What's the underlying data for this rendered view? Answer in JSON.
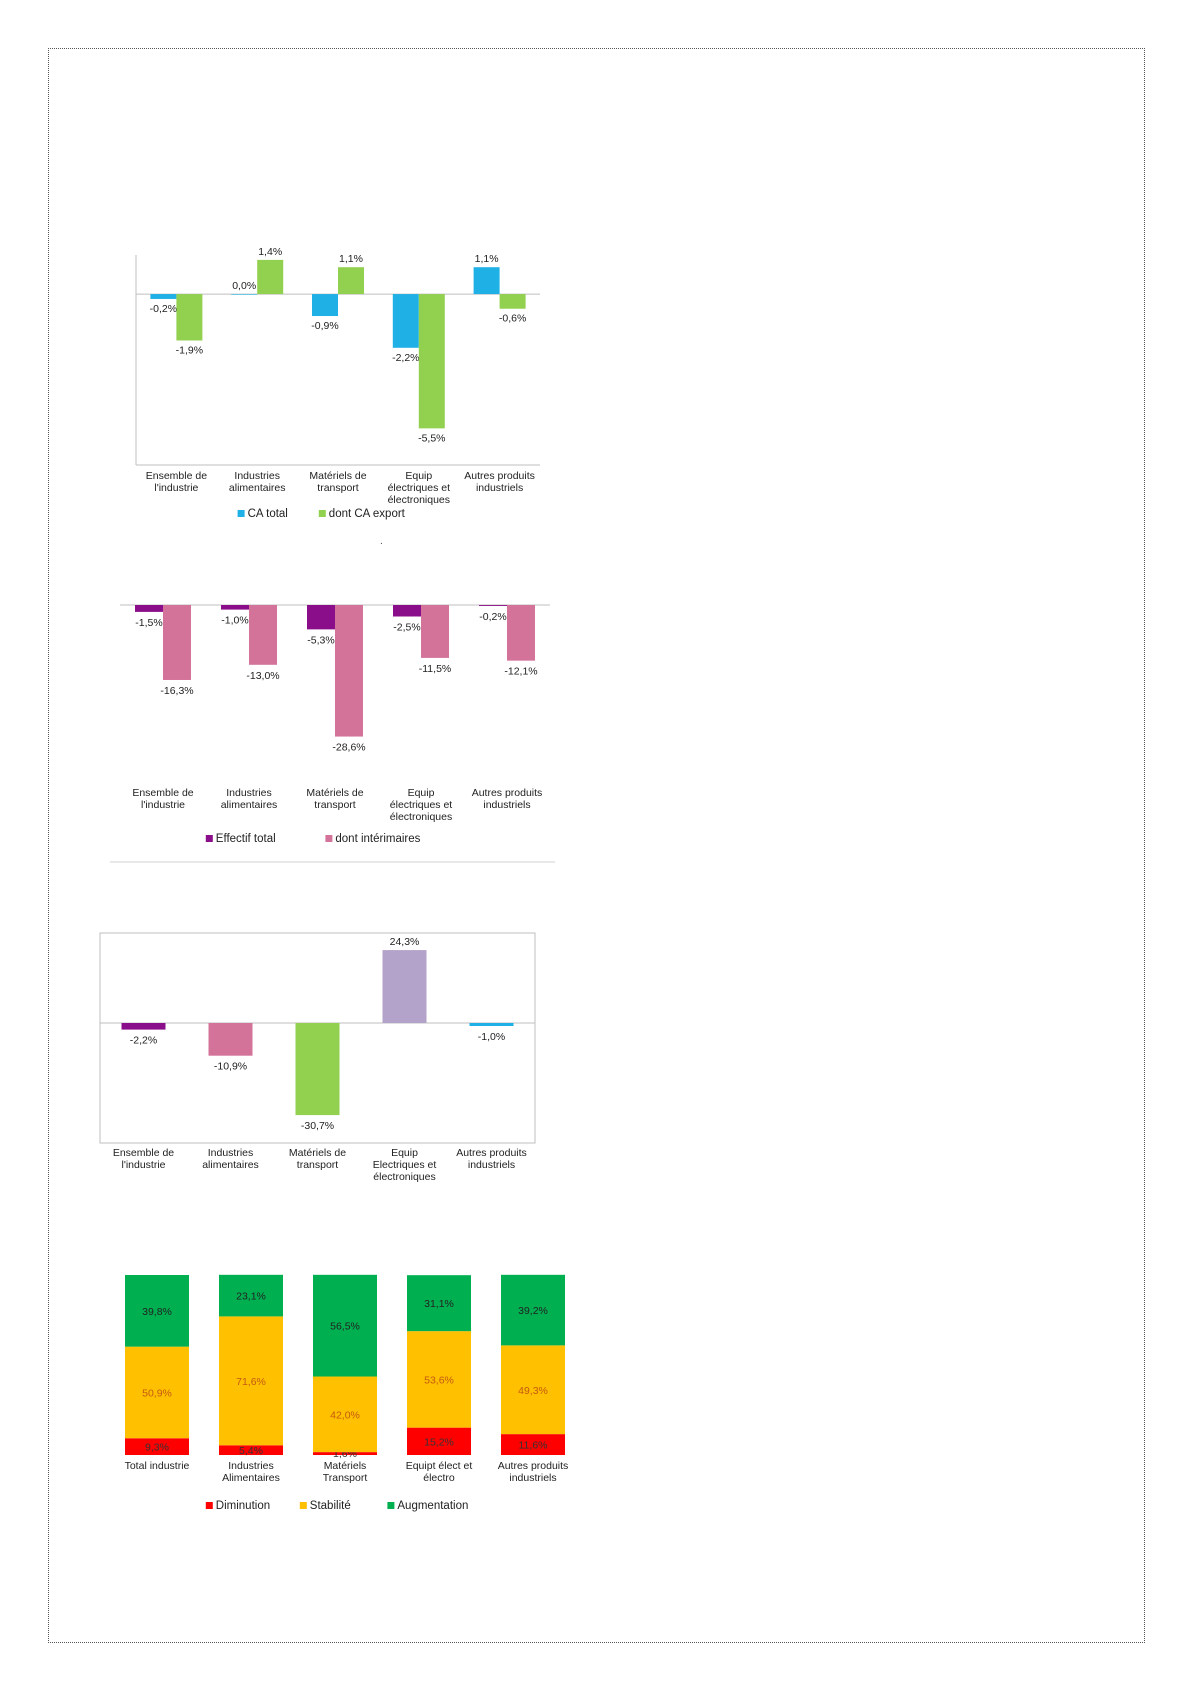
{
  "dot": ".",
  "charts": [
    {
      "type": "bar",
      "categories": [
        "Ensemble de\nl'industrie",
        "Industries\nalimentaires",
        "Matériels de\ntransport",
        "Equip\nélectriques et\nélectroniques",
        "Autres produits\nindustriels"
      ],
      "series": [
        {
          "name": "CA total",
          "color": "#1fb0e6",
          "values": [
            -0.2,
            0.0,
            -0.9,
            -2.2,
            1.1
          ],
          "labels": [
            "-0,2%",
            "0,0%",
            "-0,9%",
            "-2,2%",
            "1,1%"
          ]
        },
        {
          "name": "dont CA export",
          "color": "#92d050",
          "values": [
            -1.9,
            1.4,
            1.1,
            -5.5,
            -0.6
          ],
          "labels": [
            "-1,9%",
            "1,4%",
            "1,1%",
            "-5,5%",
            "-0,6%"
          ]
        }
      ],
      "ylim": [
        -7,
        1.6
      ],
      "legend": "bottom"
    },
    {
      "type": "bar",
      "categories": [
        "Ensemble de\nl'industrie",
        "Industries\nalimentaires",
        "Matériels de\ntransport",
        "Equip\nélectriques et\nélectroniques",
        "Autres produits\nindustriels"
      ],
      "series": [
        {
          "name": "Effectif total",
          "color": "#8a0e8a",
          "values": [
            -1.5,
            -1.0,
            -5.3,
            -2.5,
            -0.2
          ],
          "labels": [
            "-1,5%",
            "-1,0%",
            "-5,3%",
            "-2,5%",
            "-0,2%"
          ]
        },
        {
          "name": "dont intérimaires",
          "color": "#d4739a",
          "values": [
            -16.3,
            -13.0,
            -28.6,
            -11.5,
            -12.1
          ],
          "labels": [
            "-16,3%",
            "-13,0%",
            "-28,6%",
            "-11,5%",
            "-12,1%"
          ]
        }
      ],
      "ylim": [
        -30,
        0
      ],
      "legend": "bottom"
    },
    {
      "type": "bar",
      "categories": [
        "Ensemble de\nl'industrie",
        "Industries\nalimentaires",
        "Matériels de\ntransport",
        "Equip\nElectriques et\nélectroniques",
        "Autres produits\nindustriels"
      ],
      "values": [
        -2.2,
        -10.9,
        -30.7,
        24.3,
        -1.0
      ],
      "labels": [
        "-2,2%",
        "-10,9%",
        "-30,7%",
        "24,3%",
        "-1,0%"
      ],
      "colors": [
        "#8a0e8a",
        "#d4739a",
        "#92d050",
        "#b3a2c9",
        "#1fb0e6"
      ],
      "ylim": [
        -40,
        30
      ]
    },
    {
      "type": "bar",
      "stacked": true,
      "categories": [
        "Total industrie",
        "Industries\nAlimentaires",
        "Matériels\nTransport",
        "Equipt élect et\nélectro",
        "Autres produits\nindustriels"
      ],
      "series": [
        {
          "name": "Diminution",
          "color": "#ff0000",
          "text_color": "#333333",
          "values": [
            9.3,
            5.4,
            1.6,
            15.2,
            11.6
          ],
          "labels": [
            "9,3%",
            "5,4%",
            "1,6%",
            "15,2%",
            "11,6%"
          ]
        },
        {
          "name": "Stabilité",
          "color": "#ffc000",
          "text_color": "#c55a11",
          "values": [
            50.9,
            71.6,
            42.0,
            53.6,
            49.3
          ],
          "labels": [
            "50,9%",
            "71,6%",
            "42,0%",
            "53,6%",
            "49,3%"
          ]
        },
        {
          "name": "Augmentation",
          "color": "#00b050",
          "text_color": "#222222",
          "values": [
            39.8,
            23.1,
            56.5,
            31.1,
            39.2
          ],
          "labels": [
            "39,8%",
            "23,1%",
            "56,5%",
            "31,1%",
            "39,2%"
          ]
        }
      ],
      "ylim": [
        0,
        100
      ],
      "legend": "bottom"
    }
  ]
}
